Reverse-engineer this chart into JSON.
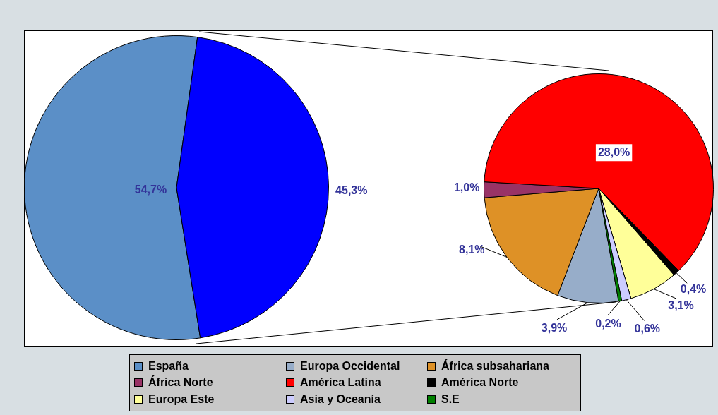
{
  "chart_data": [
    {
      "type": "pie",
      "categories": [
        "España",
        null
      ],
      "values": [
        54.7,
        45.3
      ],
      "colors": [
        "#5b8fc7",
        "#0000ff"
      ],
      "value_labels": [
        "54,7%",
        "45,3%"
      ],
      "legend": "bottom"
    },
    {
      "type": "pie",
      "categories": [
        "Europa Occidental",
        "África subsahariana",
        "África Norte",
        "América Latina",
        "América Norte",
        "Europa Este",
        "Asia y Oceanía",
        "S.E"
      ],
      "values": [
        3.9,
        8.1,
        1.0,
        28.0,
        0.4,
        3.1,
        0.6,
        0.2
      ],
      "colors": [
        "#97adc9",
        "#de9126",
        "#993366",
        "#ff0000",
        "#000000",
        "#ffff99",
        "#ccccff",
        "#008000"
      ],
      "value_labels": [
        "3,9%",
        "8,1%",
        "1,0%",
        "28,0%",
        "0,4%",
        "3,1%",
        "0,6%",
        "0,2%"
      ],
      "legend": "bottom"
    }
  ]
}
